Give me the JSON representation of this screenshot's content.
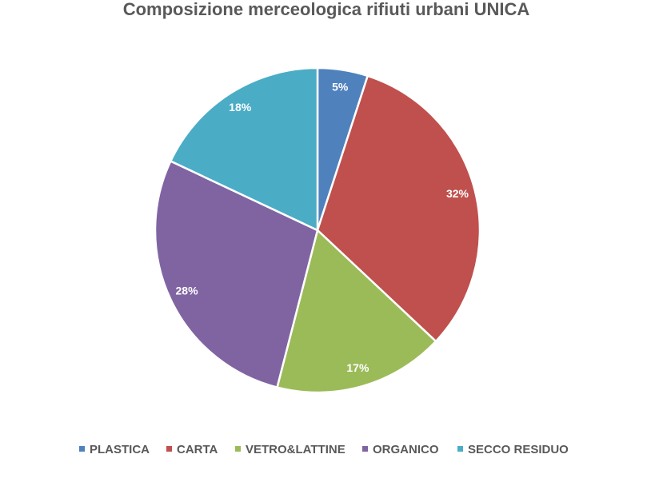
{
  "chart_data": {
    "type": "pie",
    "title": "Composizione merceologica rifiuti urbani UNICA",
    "categories": [
      "PLASTICA",
      "CARTA",
      "VETRO&LATTINE",
      "ORGANICO",
      "SECCO RESIDUO"
    ],
    "values": [
      5,
      32,
      17,
      28,
      18
    ],
    "value_labels": [
      "5%",
      "32%",
      "17%",
      "28%",
      "18%"
    ],
    "colors": [
      "#4f81bd",
      "#c0504d",
      "#9bbb59",
      "#8064a2",
      "#4bacc6"
    ],
    "legend": "bottom"
  }
}
